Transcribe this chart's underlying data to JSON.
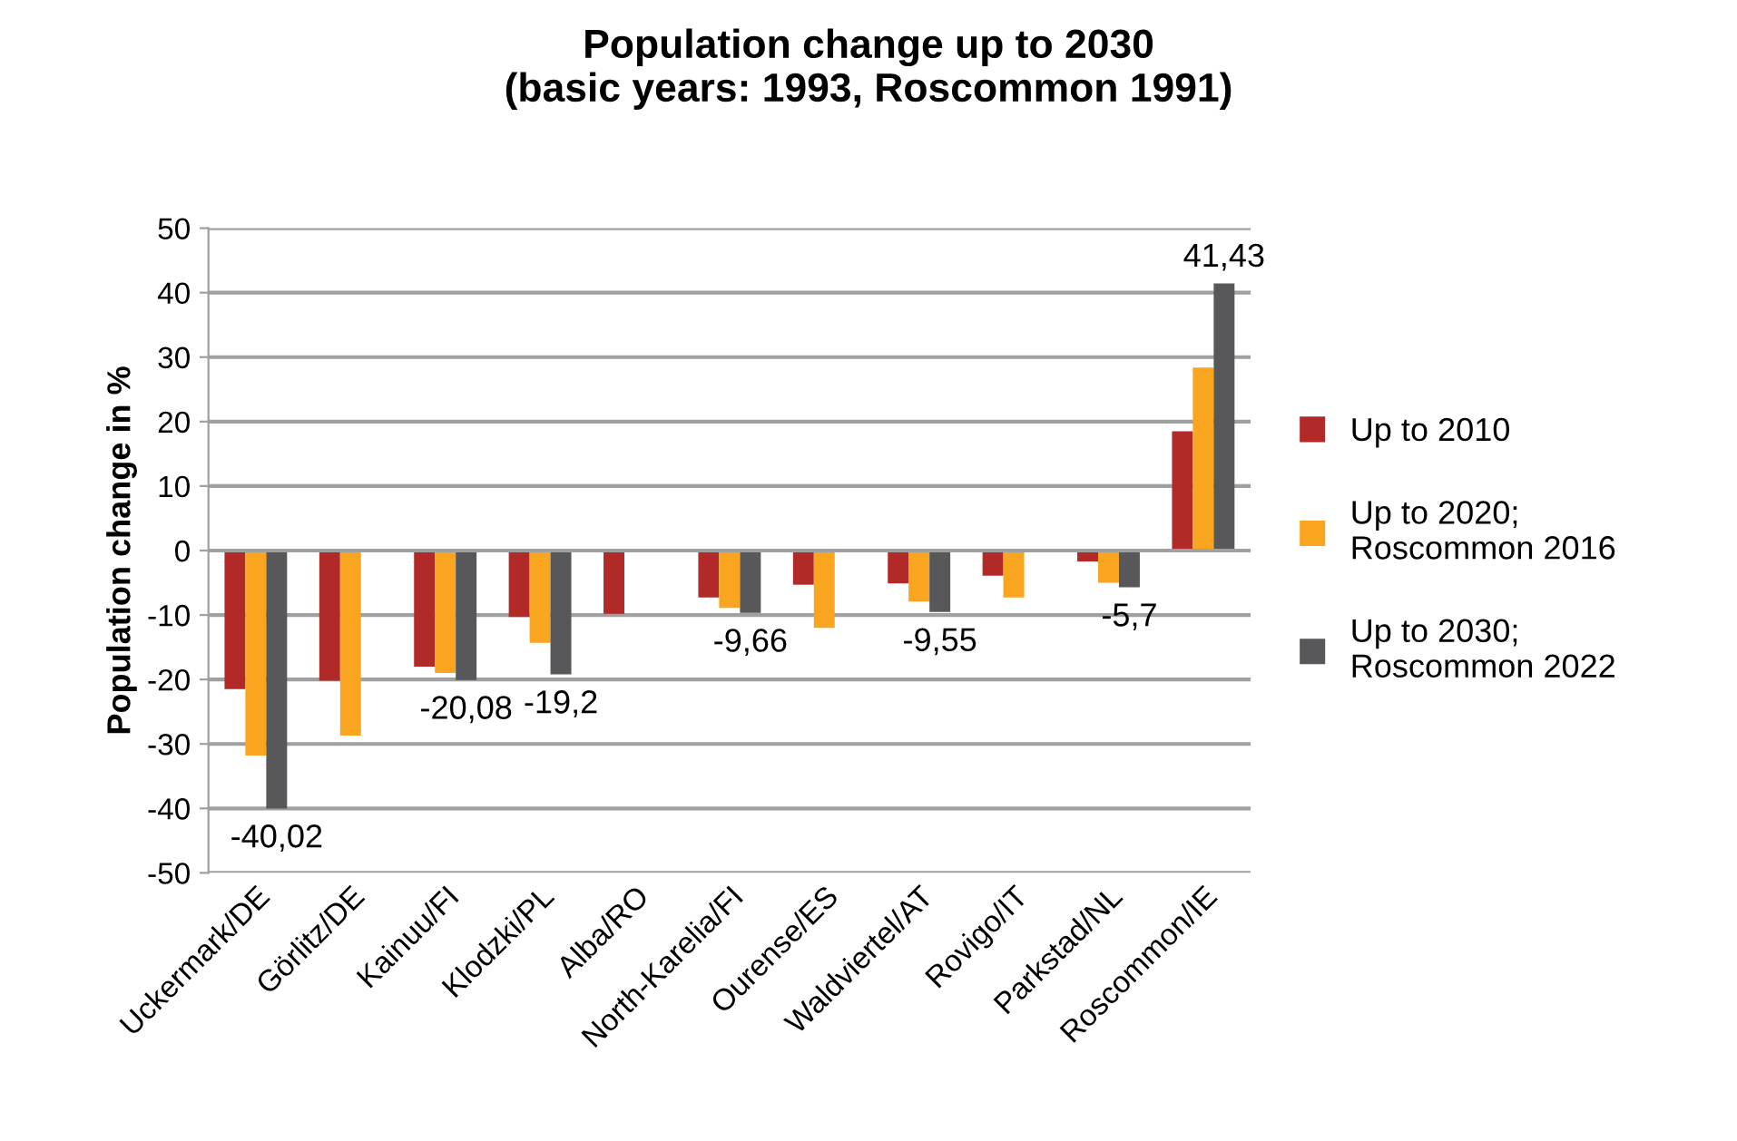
{
  "chart_data": {
    "type": "bar",
    "title": "Population change up to 2030\n(basic years: 1993, Roscommon 1991)",
    "ylabel": "Population change in %",
    "categories": [
      "Uckermark/DE",
      "Görlitz/DE",
      "Kainuu/FI",
      "Klodzki/PL",
      "Alba/RO",
      "North-Karelia/FI",
      "Ourense/ES",
      "Waldviertel/AT",
      "Rovigo/IT",
      "Parkstad/NL",
      "Roscommon/IE"
    ],
    "series": [
      {
        "name": "Up to 2010",
        "color": "#b22a27",
        "values": [
          -21.5,
          -20.2,
          -18,
          -10.3,
          -9.8,
          -7.3,
          -5.3,
          -5.1,
          -3.9,
          -1.7,
          18.5
        ]
      },
      {
        "name": "Up to 2020;\nRoscommon 2016",
        "color": "#f9a51f",
        "values": [
          -31.8,
          -28.7,
          -19,
          -14.3,
          null,
          -8.9,
          -12,
          -7.9,
          -7.3,
          -5,
          28.4
        ]
      },
      {
        "name": "Up to 2030;\nRoscommon 2022",
        "color": "#58585a",
        "values": [
          -40.02,
          null,
          -20.08,
          -19.2,
          null,
          -9.66,
          null,
          -9.55,
          null,
          -5.7,
          41.43
        ],
        "value_labels": [
          "-40,02",
          null,
          "-20,08",
          "-19,2",
          null,
          "-9,66",
          null,
          "-9,55",
          null,
          "-5,7",
          "41,43"
        ]
      }
    ],
    "ylim": [
      -50,
      50
    ],
    "yticks": [
      -50,
      -40,
      -30,
      -20,
      -10,
      0,
      10,
      20,
      30,
      40,
      50
    ],
    "grid": "y",
    "legend": "right"
  }
}
